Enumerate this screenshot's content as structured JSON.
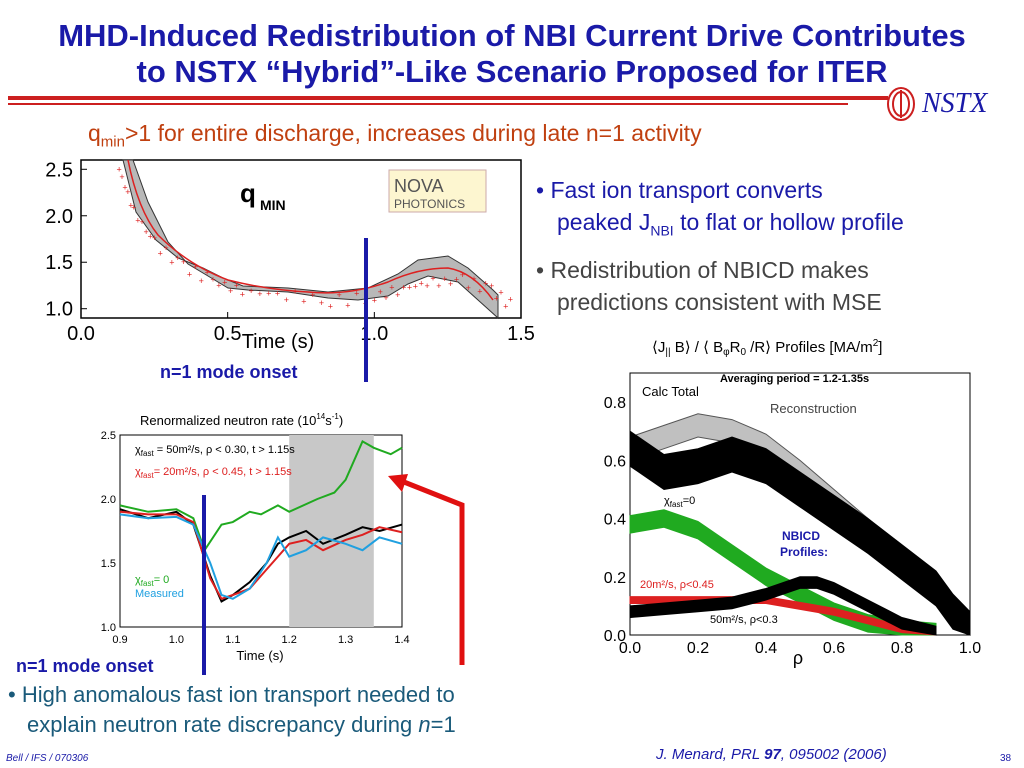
{
  "slide": {
    "title_line1": "MHD-Induced Redistribution of NBI Current Drive Contributes",
    "title_line2": "to NSTX “Hybrid”-Like Scenario Proposed for ITER",
    "logo_text": "NSTX",
    "subtitle_q": "q",
    "subtitle_sub": "min",
    "subtitle_rest": ">1 for entire discharge, increases during late n=1 activity",
    "bullet1_line1": "Fast ion transport converts",
    "bullet1_line2_pre": "peaked J",
    "bullet1_line2_sub": "NBI",
    "bullet1_line2_post": " to flat or hollow profile",
    "bullet2_line1": "Redistribution of NBICD makes",
    "bullet2_line2": "predictions consistent with MSE",
    "bullet3_line1": "High anomalous fast ion transport needed to",
    "bullet3_line2_pre": "explain neutron rate discrepancy during ",
    "bullet3_line2_n": "n",
    "bullet3_line2_post": "=1",
    "onset_label_top": "n=1 mode onset",
    "onset_label_bottom": "n=1 mode onset",
    "footer_left": "Bell / IFS / 070306",
    "footer_cite_pre": "J. Menard,  PRL ",
    "footer_cite_vol": "97",
    "footer_cite_post": ", 095002 (2006)",
    "page_number": "38",
    "logo_nova_line1": "NOVA",
    "logo_nova_line2": "PHOTONICS"
  },
  "chart_data": [
    {
      "type": "line",
      "title": "q",
      "title_sub": "MIN",
      "xlabel": "Time (s)",
      "xlim": [
        0.0,
        1.5
      ],
      "ylim": [
        0.9,
        2.6
      ],
      "x_ticks": [
        "0.0",
        "0.5",
        "1.0",
        "1.5"
      ],
      "y_ticks": [
        "1.0",
        "1.5",
        "2.0",
        "2.5"
      ],
      "series": [
        {
          "x": [
            0.13,
            0.18,
            0.25,
            0.35,
            0.45,
            0.55,
            0.7,
            0.85,
            1.0,
            1.1,
            1.2,
            1.3,
            1.4,
            1.48
          ],
          "values": [
            2.5,
            2.05,
            1.7,
            1.45,
            1.3,
            1.18,
            1.15,
            1.08,
            1.12,
            1.22,
            1.28,
            1.3,
            1.2,
            1.0
          ]
        }
      ],
      "n1_onset_t": 1.05
    },
    {
      "type": "line",
      "title": "Renormalized neutron rate (10",
      "title_sup": "14",
      "title_mid": "s",
      "title_sup2": "-1",
      "title_end": ")",
      "xlabel": "Time (s)",
      "xlim": [
        0.9,
        1.4
      ],
      "ylim": [
        1.0,
        2.5
      ],
      "x_ticks": [
        "0.9",
        "1.0",
        "1.1",
        "1.2",
        "1.3",
        "1.4"
      ],
      "y_ticks": [
        "1.0",
        "1.5",
        "2.0",
        "2.5"
      ],
      "shaded_region": [
        1.2,
        1.35
      ],
      "n1_onset_t": 1.05,
      "legend": [
        {
          "pre": "χ",
          "sub": "fast",
          "text": " = 50m²/s, ρ < 0.30, t > 1.15s",
          "color": "#000000"
        },
        {
          "pre": "χ",
          "sub": "fast",
          "text": "= 20m²/s, ρ < 0.45, t > 1.15s",
          "color": "#dd2020"
        }
      ],
      "inline_labels": [
        {
          "pre": "χ",
          "sub": "fast",
          "text": "= 0",
          "color": "#20aa20"
        },
        {
          "pre": "",
          "sub": "",
          "text": "Measured",
          "color": "#20a0e0"
        }
      ],
      "series": [
        {
          "color": "#20aa20",
          "x": [
            0.9,
            0.95,
            1.0,
            1.03,
            1.05,
            1.08,
            1.1,
            1.13,
            1.15,
            1.18,
            1.2,
            1.25,
            1.28,
            1.3,
            1.33,
            1.35,
            1.38,
            1.4
          ],
          "values": [
            1.95,
            1.9,
            1.92,
            1.85,
            1.6,
            1.8,
            1.82,
            1.9,
            1.88,
            1.95,
            1.9,
            2.0,
            2.05,
            2.15,
            2.45,
            2.4,
            2.35,
            2.4
          ]
        },
        {
          "color": "#000000",
          "x": [
            0.9,
            0.95,
            1.0,
            1.03,
            1.06,
            1.08,
            1.1,
            1.13,
            1.16,
            1.18,
            1.2,
            1.23,
            1.26,
            1.3,
            1.33,
            1.36,
            1.4
          ],
          "values": [
            1.92,
            1.85,
            1.9,
            1.8,
            1.4,
            1.2,
            1.25,
            1.35,
            1.5,
            1.65,
            1.7,
            1.75,
            1.65,
            1.72,
            1.78,
            1.75,
            1.8
          ]
        },
        {
          "color": "#dd2020",
          "x": [
            0.9,
            0.95,
            1.0,
            1.03,
            1.06,
            1.08,
            1.1,
            1.13,
            1.16,
            1.18,
            1.2,
            1.23,
            1.26,
            1.3,
            1.33,
            1.36,
            1.4
          ],
          "values": [
            1.9,
            1.88,
            1.88,
            1.82,
            1.38,
            1.22,
            1.25,
            1.3,
            1.45,
            1.55,
            1.65,
            1.68,
            1.6,
            1.68,
            1.72,
            1.78,
            1.74
          ]
        },
        {
          "color": "#20a0e0",
          "x": [
            0.9,
            0.95,
            1.0,
            1.03,
            1.06,
            1.08,
            1.1,
            1.13,
            1.16,
            1.18,
            1.2,
            1.23,
            1.26,
            1.3,
            1.33,
            1.36,
            1.4
          ],
          "values": [
            1.88,
            1.85,
            1.86,
            1.8,
            1.5,
            1.25,
            1.22,
            1.3,
            1.5,
            1.7,
            1.55,
            1.6,
            1.7,
            1.65,
            1.6,
            1.7,
            1.65
          ]
        }
      ]
    },
    {
      "type": "line",
      "title_pre": "⟨J",
      "title_j_sub": "||",
      "title_mid": " B⟩ / ⟨ B",
      "title_phi_sub": "φ",
      "title_r": "R",
      "title_r_sub": "0",
      "title_end": " /R⟩  Profiles  [MA/m",
      "title_sup": "2",
      "title_close": "]",
      "subtitle": "Averaging period = 1.2-1.35s",
      "xlabel": "ρ",
      "xlim": [
        0.0,
        1.0
      ],
      "ylim": [
        0.0,
        0.9
      ],
      "x_ticks": [
        "0.0",
        "0.2",
        "0.4",
        "0.6",
        "0.8",
        "1.0"
      ],
      "y_ticks": [
        "0.0",
        "0.2",
        "0.4",
        "0.6",
        "0.8"
      ],
      "annotations": {
        "calc_total": "Calc Total",
        "reconstruction": "Reconstruction",
        "chi50": "50m²/s, ρ<0.3",
        "chi0_pre": "χ",
        "chi0_sub": "fast",
        "chi0_post": "=0",
        "nbicd_line1": "NBICD",
        "nbicd_line2": "Profiles:",
        "chi20": "20m²/s, ρ<0.45",
        "chi50b": "50m²/s, ρ<0.3"
      },
      "series": [
        {
          "name": "Reconstruction",
          "color": "#c0c0c0",
          "x": [
            0.0,
            0.1,
            0.2,
            0.3,
            0.4,
            0.5,
            0.6,
            0.7,
            0.8,
            0.9,
            0.95,
            1.0
          ],
          "values": [
            0.64,
            0.68,
            0.72,
            0.7,
            0.65,
            0.56,
            0.46,
            0.36,
            0.26,
            0.16,
            0.08,
            0.02
          ]
        },
        {
          "name": "Calc Total",
          "color": "#000000",
          "x": [
            0.0,
            0.1,
            0.2,
            0.3,
            0.4,
            0.5,
            0.6,
            0.7,
            0.8,
            0.9,
            0.95,
            1.0
          ],
          "values": [
            0.64,
            0.56,
            0.58,
            0.62,
            0.58,
            0.5,
            0.42,
            0.34,
            0.25,
            0.16,
            0.08,
            0.02
          ]
        },
        {
          "name": "χfast=0",
          "color": "#20aa20",
          "x": [
            0.0,
            0.1,
            0.2,
            0.3,
            0.4,
            0.5,
            0.6,
            0.7,
            0.8,
            0.9
          ],
          "values": [
            0.38,
            0.4,
            0.36,
            0.28,
            0.2,
            0.14,
            0.08,
            0.04,
            0.02,
            0.01
          ]
        },
        {
          "name": "20m²/s, ρ<0.45",
          "color": "#dd2020",
          "x": [
            0.0,
            0.1,
            0.2,
            0.3,
            0.4,
            0.5,
            0.6,
            0.7,
            0.8,
            0.9
          ],
          "values": [
            0.12,
            0.12,
            0.12,
            0.12,
            0.12,
            0.1,
            0.08,
            0.05,
            0.02,
            0.01
          ]
        },
        {
          "name": "50m²/s, ρ<0.3",
          "color": "#000000",
          "x": [
            0.0,
            0.1,
            0.2,
            0.3,
            0.4,
            0.5,
            0.55,
            0.6,
            0.7,
            0.8,
            0.9
          ],
          "values": [
            0.08,
            0.09,
            0.1,
            0.11,
            0.14,
            0.18,
            0.18,
            0.16,
            0.1,
            0.04,
            0.01
          ]
        }
      ]
    }
  ]
}
